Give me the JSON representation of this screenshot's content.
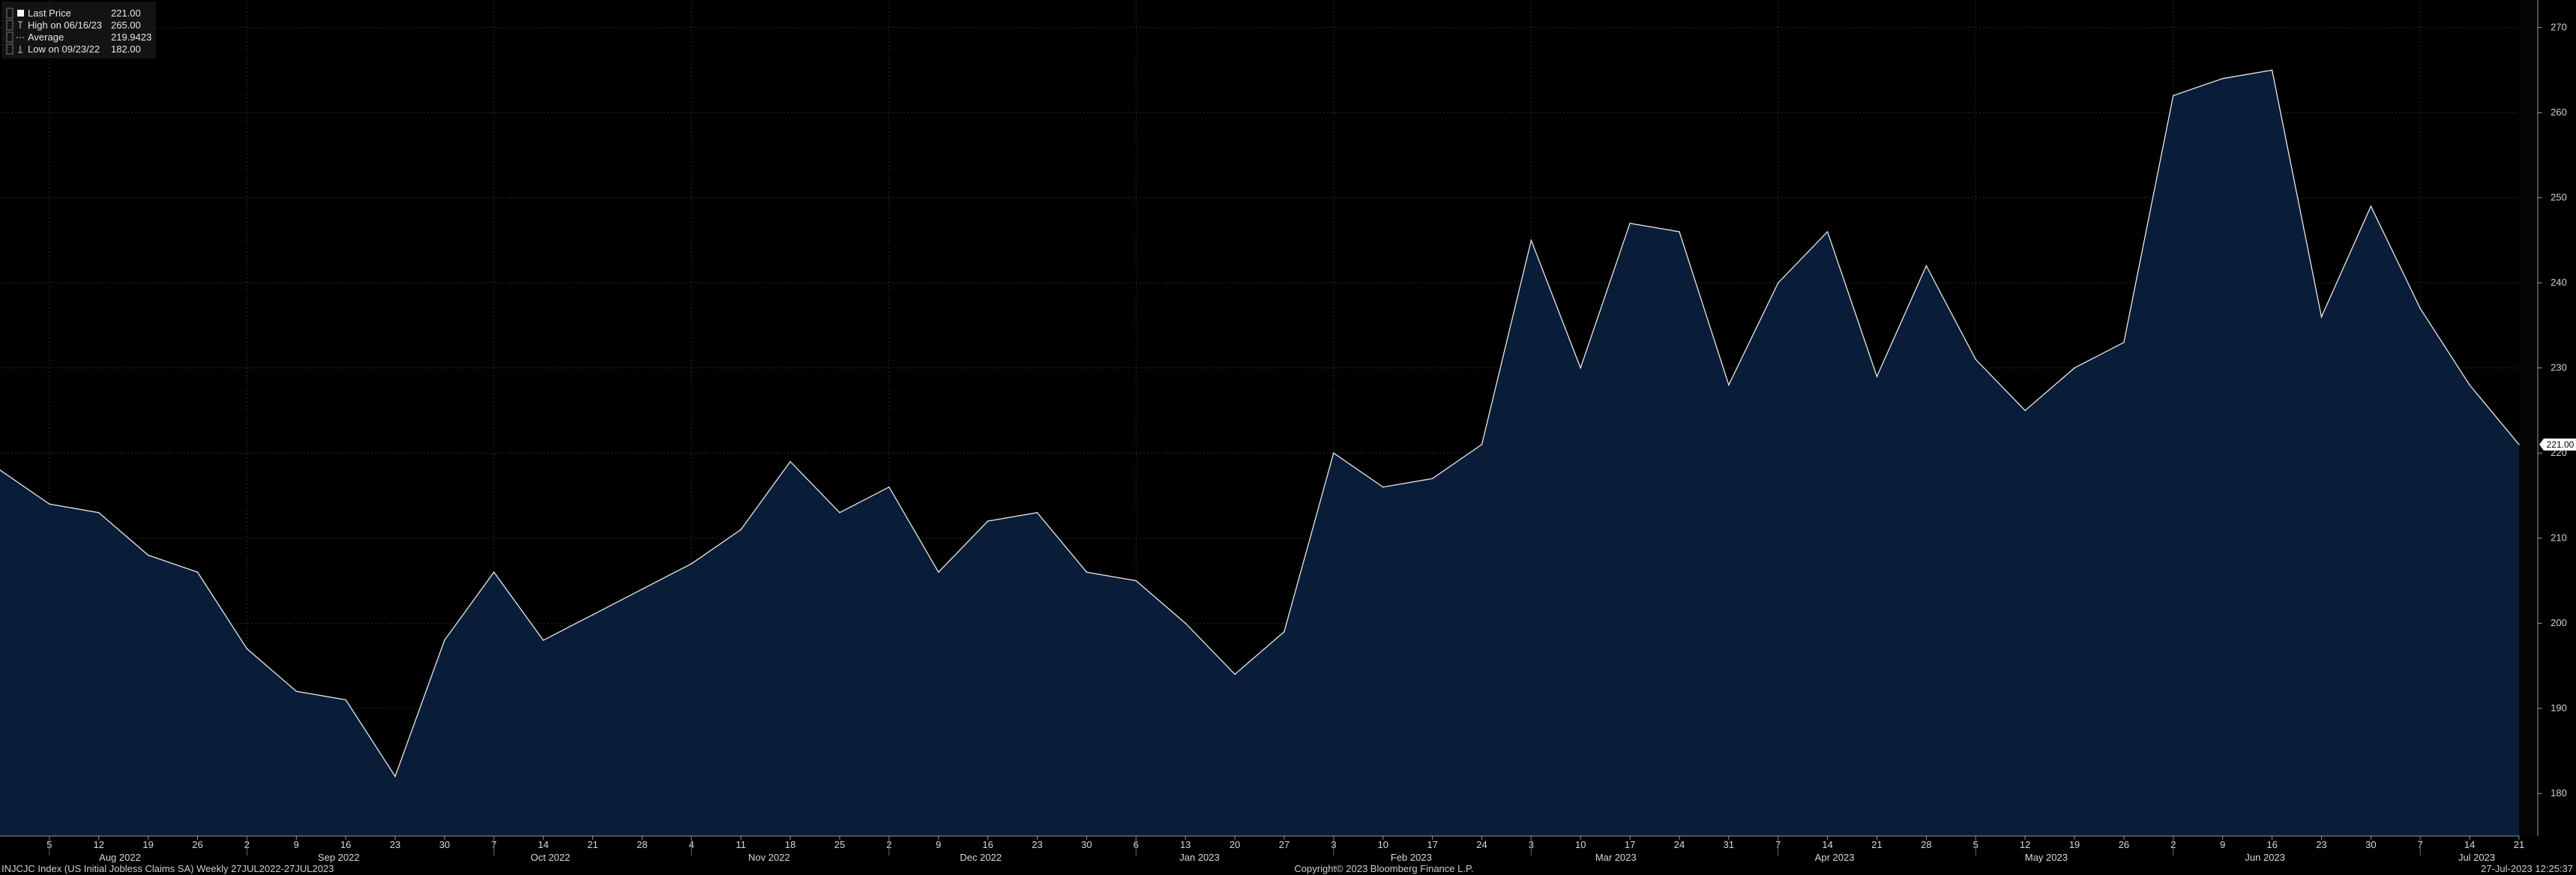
{
  "legend": {
    "items": [
      {
        "icon": "last-price-swatch-icon",
        "label": "Last Price",
        "value": "221.00"
      },
      {
        "icon": "high-marker-icon",
        "label": "High on 06/16/23",
        "value": "265.00"
      },
      {
        "icon": "average-line-icon",
        "label": "Average",
        "value": "219.9423"
      },
      {
        "icon": "low-marker-icon",
        "label": "Low on 09/23/22",
        "value": "182.00"
      }
    ]
  },
  "last_price_tag": "221.00",
  "footer": {
    "left": "INJCJC Index (US Initial Jobless Claims SA)  Weekly 27JUL2022-27JUL2023",
    "center": "Copyright© 2023 Bloomberg Finance L.P.",
    "right": "27-Jul-2023 12:25:37"
  },
  "colors": {
    "background": "#000000",
    "area_fill": "#0a1f3c",
    "line": "#e8e8e8",
    "grid": "#2a2a2a"
  },
  "chart_data": {
    "type": "area",
    "ylim": [
      175,
      272
    ],
    "yticks": [
      180,
      190,
      200,
      210,
      220,
      230,
      240,
      250,
      260,
      270
    ],
    "grid": true,
    "x": [
      "2022-07-29",
      "2022-08-05",
      "2022-08-12",
      "2022-08-19",
      "2022-08-26",
      "2022-09-02",
      "2022-09-09",
      "2022-09-16",
      "2022-09-23",
      "2022-09-30",
      "2022-10-07",
      "2022-10-14",
      "2022-10-21",
      "2022-10-28",
      "2022-11-04",
      "2022-11-11",
      "2022-11-18",
      "2022-11-25",
      "2022-12-02",
      "2022-12-09",
      "2022-12-16",
      "2022-12-23",
      "2022-12-30",
      "2023-01-06",
      "2023-01-13",
      "2023-01-20",
      "2023-01-27",
      "2023-02-03",
      "2023-02-10",
      "2023-02-17",
      "2023-02-24",
      "2023-03-03",
      "2023-03-10",
      "2023-03-17",
      "2023-03-24",
      "2023-03-31",
      "2023-04-07",
      "2023-04-14",
      "2023-04-21",
      "2023-04-28",
      "2023-05-05",
      "2023-05-12",
      "2023-05-19",
      "2023-05-26",
      "2023-06-02",
      "2023-06-09",
      "2023-06-16",
      "2023-06-23",
      "2023-06-30",
      "2023-07-07",
      "2023-07-14",
      "2023-07-21"
    ],
    "series": [
      {
        "values": [
          218,
          214,
          213,
          208,
          206,
          197,
          192,
          191,
          182,
          198,
          206,
          198,
          201,
          204,
          207,
          211,
          219,
          213,
          216,
          206,
          212,
          213,
          206,
          205,
          200,
          194,
          199,
          220,
          216,
          217,
          221,
          245,
          230,
          247,
          246,
          228,
          240,
          246,
          229,
          242,
          231,
          225,
          230,
          233,
          262,
          264,
          265,
          236,
          249,
          237,
          228,
          221
        ]
      }
    ],
    "x_tick_labels": [
      "5",
      "12",
      "19",
      "26",
      "2",
      "9",
      "16",
      "23",
      "30",
      "7",
      "14",
      "21",
      "28",
      "4",
      "11",
      "18",
      "25",
      "2",
      "9",
      "16",
      "23",
      "30",
      "6",
      "13",
      "20",
      "27",
      "3",
      "10",
      "17",
      "24",
      "3",
      "10",
      "17",
      "24",
      "31",
      "7",
      "14",
      "21",
      "28",
      "5",
      "12",
      "19",
      "26",
      "2",
      "9",
      "16",
      "23",
      "30",
      "7",
      "14",
      "21"
    ],
    "month_labels": [
      {
        "label": "Aug 2022",
        "center": "2022-08-15"
      },
      {
        "label": "Sep 2022",
        "center": "2022-09-15"
      },
      {
        "label": "Oct 2022",
        "center": "2022-10-15"
      },
      {
        "label": "Nov 2022",
        "center": "2022-11-15"
      },
      {
        "label": "Dec 2022",
        "center": "2022-12-15"
      },
      {
        "label": "Jan 2023",
        "center": "2023-01-15"
      },
      {
        "label": "Feb 2023",
        "center": "2023-02-14"
      },
      {
        "label": "Mar 2023",
        "center": "2023-03-15"
      },
      {
        "label": "Apr 2023",
        "center": "2023-04-15"
      },
      {
        "label": "May 2023",
        "center": "2023-05-15"
      },
      {
        "label": "Jun 2023",
        "center": "2023-06-15"
      },
      {
        "label": "Jul 2023",
        "center": "2023-07-15"
      }
    ]
  }
}
